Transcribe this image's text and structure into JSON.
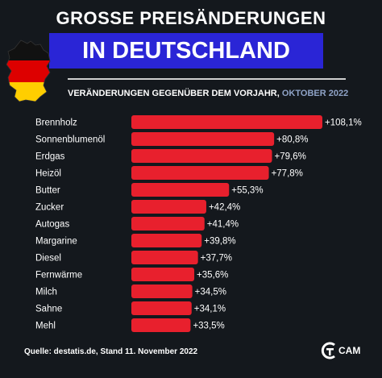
{
  "header": {
    "title_line1": "GROSSE PREISÄNDERUNGEN",
    "title_line2": "IN DEUTSCHLAND",
    "subtitle_main": "VERÄNDERUNGEN GEGENÜBER DEM VORJAHR, ",
    "subtitle_accent": "OKTOBER 2022"
  },
  "colors": {
    "background": "#14181d",
    "bar": "#e8202d",
    "title_box": "#2a25d6",
    "accent_text": "#8fa3c7",
    "flag_black": "#111111",
    "flag_red": "#dd0000",
    "flag_gold": "#ffce00"
  },
  "chart_data": {
    "type": "bar",
    "orientation": "horizontal",
    "categories": [
      "Brennholz",
      "Sonnenblumenöl",
      "Erdgas",
      "Heizöl",
      "Butter",
      "Zucker",
      "Autogas",
      "Margarine",
      "Diesel",
      "Fernwärme",
      "Milch",
      "Sahne",
      "Mehl"
    ],
    "values": [
      108.1,
      80.8,
      79.6,
      77.8,
      55.3,
      42.4,
      41.4,
      39.8,
      37.7,
      35.6,
      34.5,
      34.1,
      33.5
    ],
    "value_labels": [
      "+108,1%",
      "+80,8%",
      "+79,6%",
      "+77,8%",
      "+55,3%",
      "+42,4%",
      "+41,4%",
      "+39,8%",
      "+37,7%",
      "+35,6%",
      "+34,5%",
      "+34,1%",
      "+33,5%"
    ],
    "xlim": [
      0,
      108.1
    ],
    "grid": false
  },
  "footer": {
    "source": "Quelle: destatis.de, Stand 11. November 2022",
    "logo_text": "CAM"
  }
}
